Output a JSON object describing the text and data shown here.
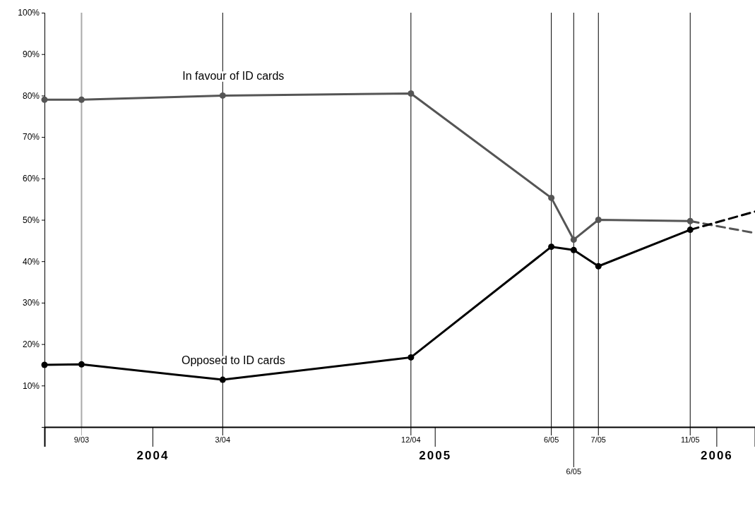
{
  "chart_data": {
    "type": "line",
    "grid": false,
    "xlim": [
      "2003-08-14",
      "2006-02-20"
    ],
    "xticks": [
      {
        "value": "2004-01-01",
        "label": "2004"
      },
      {
        "value": "2005-01-01",
        "label": "2005"
      },
      {
        "value": "2006-01-01",
        "label": "2006"
      }
    ],
    "ylim": [
      0,
      100
    ],
    "yticks": [
      {
        "value": 10,
        "label": "10%"
      },
      {
        "value": 20,
        "label": "20%"
      },
      {
        "value": 30,
        "label": "30%"
      },
      {
        "value": 40,
        "label": "40%"
      },
      {
        "value": 50,
        "label": "50%"
      },
      {
        "value": 60,
        "label": "60%"
      },
      {
        "value": 70,
        "label": "70%"
      },
      {
        "value": 80,
        "label": "80%"
      },
      {
        "value": 90,
        "label": "90%"
      },
      {
        "value": 100,
        "label": "100%"
      }
    ],
    "series": [
      {
        "name": "In favour of ID cards",
        "color": "#555555",
        "marker": "circle",
        "line_style": "solid",
        "x": [
          "2003-08-14",
          "2003-10-01",
          "2004-04-01",
          "2004-12-01",
          "2005-06-01",
          "2005-06-30",
          "2005-08-01",
          "2005-11-28"
        ],
        "values": [
          79,
          79,
          80,
          80.5,
          55.3,
          45.2,
          50,
          49.7
        ]
      },
      {
        "color": "#555555",
        "marker": "none",
        "line_style": "dashed",
        "x": [
          "2005-11-28",
          "2006-02-20"
        ],
        "values": [
          49.7,
          46.8
        ]
      },
      {
        "name": "Opposed to ID cards",
        "color": "#000000",
        "marker": "circle",
        "line_style": "solid",
        "x": [
          "2003-08-14",
          "2003-10-01",
          "2004-04-01",
          "2004-12-01",
          "2005-06-01",
          "2005-06-30",
          "2005-08-01",
          "2005-11-28"
        ],
        "values": [
          15,
          15.1,
          11.4,
          16.8,
          43.5,
          42.7,
          38.8,
          47.6
        ]
      },
      {
        "color": "#000000",
        "marker": "none",
        "line_style": "dashed",
        "x": [
          "2005-11-28",
          "2006-02-20"
        ],
        "values": [
          47.6,
          52
        ]
      }
    ],
    "ref_lines": [
      {
        "axis": "x",
        "value": "2003-10-01",
        "label": "9/03",
        "color": "#aaaaaa"
      },
      {
        "axis": "x",
        "value": "2004-04-01",
        "label": "3/04",
        "color": "#000000"
      },
      {
        "axis": "x",
        "value": "2004-12-01",
        "label": "12/04",
        "color": "#000000"
      },
      {
        "axis": "x",
        "value": "2005-06-01",
        "label": "6/05",
        "color": "#000000"
      },
      {
        "axis": "x",
        "value": "2005-06-30",
        "label": "6/05",
        "color": "#000000"
      },
      {
        "axis": "x",
        "value": "2005-08-01",
        "label": "7/05",
        "color": "#000000"
      },
      {
        "axis": "x",
        "value": "2005-11-28",
        "label": "11/05",
        "color": "#000000"
      }
    ]
  }
}
